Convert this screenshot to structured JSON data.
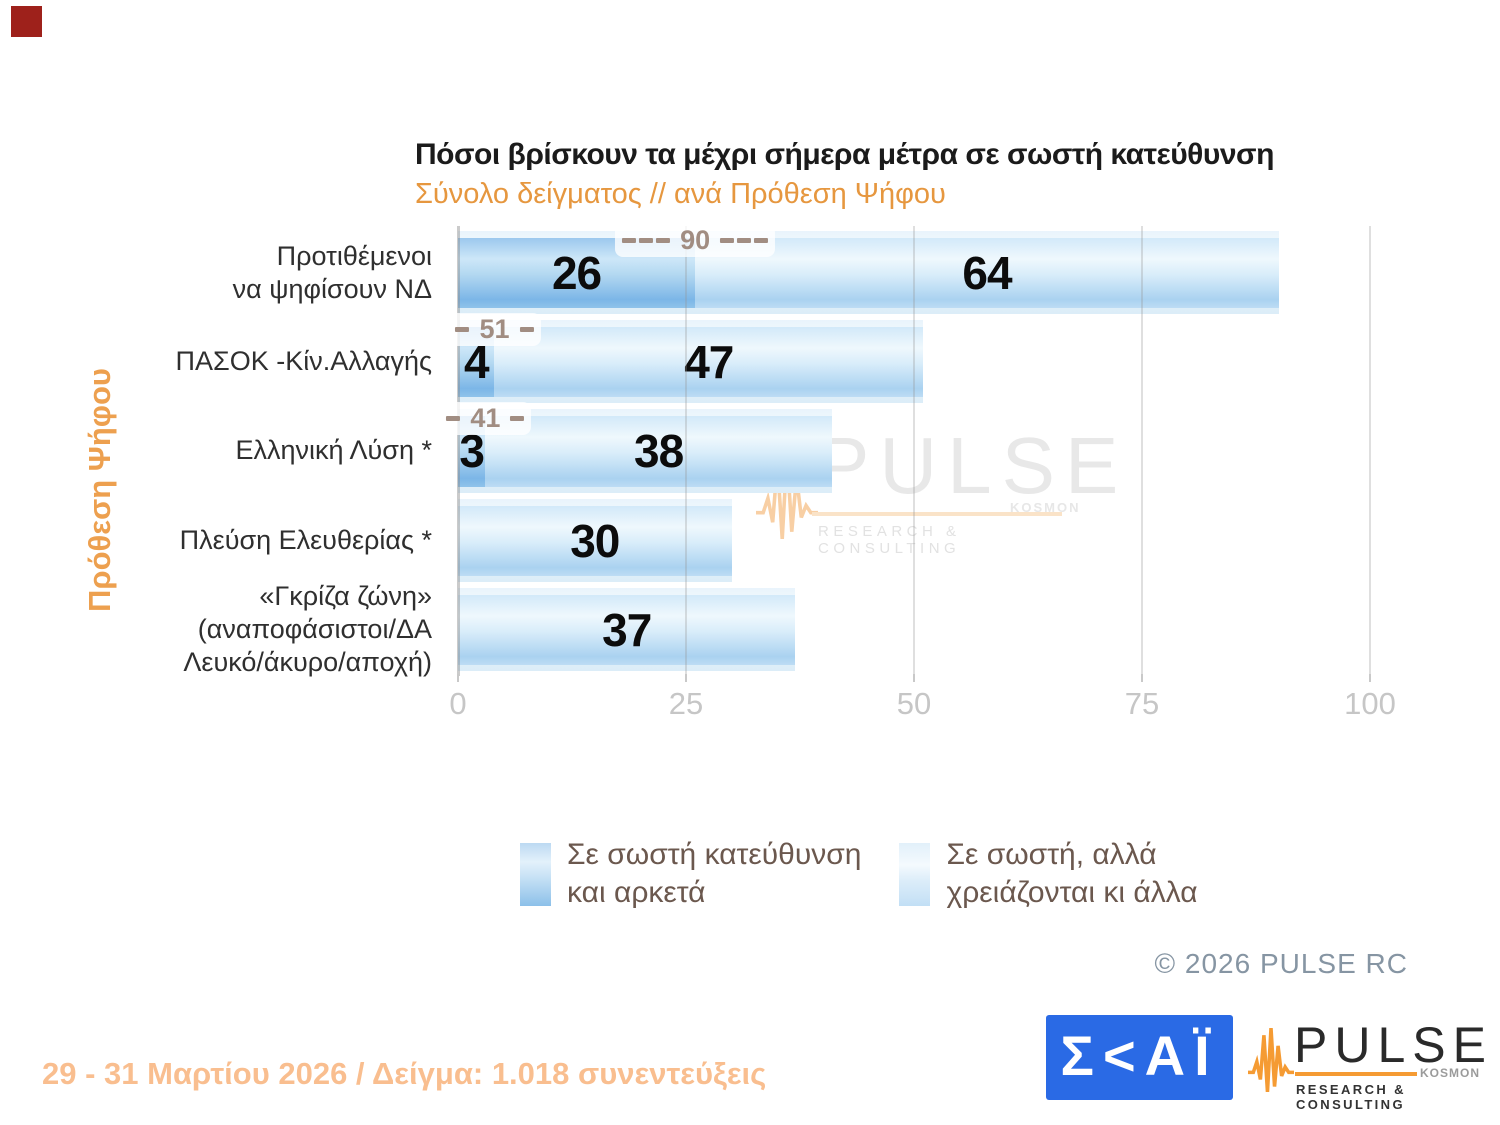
{
  "chart_data": {
    "type": "bar",
    "orientation": "horizontal",
    "stacked": true,
    "title": "Πόσοι βρίσκουν τα μέχρι σήμερα μέτρα σε σωστή κατεύθυνση",
    "subtitle": "Σύνολο δείγματος // ανά Πρόθεση  Ψήφου",
    "ylabel": "Πρόθεση  Ψήφου",
    "xlim": [
      0,
      100
    ],
    "x_ticks": [
      0,
      25,
      50,
      75,
      100
    ],
    "grid": "vertical",
    "legend_position": "bottom",
    "categories": [
      "Προτιθέμενοι να ψηφίσουν ΝΔ",
      "ΠΑΣΟΚ -Κίν.Αλλαγής",
      "Ελληνική Λύση *",
      "Πλεύση Ελευθερίας *",
      "«Γκρίζα ζώνη» (αναποφάσιστοι/ΔΑ Λευκό/άκυρο/αποχή)"
    ],
    "category_lines": [
      [
        "Προτιθέμενοι",
        "να ψηφίσουν ΝΔ"
      ],
      [
        "ΠΑΣΟΚ -Κίν.Αλλαγής"
      ],
      [
        "Ελληνική Λύση *"
      ],
      [
        "Πλεύση Ελευθερίας *"
      ],
      [
        "«Γκρίζα ζώνη»",
        "(αναποφάσιστοι/ΔΑ",
        "Λευκό/άκυρο/αποχή)"
      ]
    ],
    "series": [
      {
        "name": "Σε σωστή κατεύθυνση και αρκετά",
        "values": [
          26,
          4,
          3,
          null,
          null
        ]
      },
      {
        "name": "Σε σωστή, αλλά χρειάζονται κι άλλα",
        "values": [
          64,
          47,
          38,
          30,
          37
        ]
      }
    ],
    "total_annotations": [
      {
        "category_index": 0,
        "total": 90,
        "side_dashes": 3
      },
      {
        "category_index": 1,
        "total": 51,
        "side_dashes": 1
      },
      {
        "category_index": 2,
        "total": 41,
        "side_dashes": 1
      }
    ]
  },
  "legend": {
    "items": [
      {
        "swatch": "dark-blue-gradient",
        "lines": [
          "Σε σωστή κατεύθυνση",
          "και αρκετά"
        ]
      },
      {
        "swatch": "light-blue-gradient",
        "lines": [
          "Σε σωστή, αλλά",
          "χρειάζονται κι άλλα"
        ]
      }
    ]
  },
  "watermark": {
    "icon": "pulse-waveform-icon",
    "brand": "PULSE",
    "kosmon": "KOSMON",
    "sub": "RESEARCH & CONSULTING"
  },
  "footer": {
    "copyright": "©  2026  PULSE RC",
    "skai_text": "Σ<ΑΪ",
    "pulse": {
      "brand": "PULSE",
      "kosmon": "KOSMON",
      "sub": "RESEARCH & CONSULTING"
    },
    "fieldwork": "29 - 31  Μαρτίου 2026  /  Δείγμα:  1.018 συνεντεύξεις"
  },
  "colors": {
    "bar_dark": "#7cb6e7",
    "bar_light": "#aad2f0",
    "bar_pale_total": "#e6f2fb",
    "accent_orange": "#E6973F",
    "annotation_taupe": "#a18d82",
    "legend_text": "#6B584E",
    "copyright_gray": "#8695A3",
    "skai_blue": "#2A6AE5",
    "pulse_orange": "#F59B33",
    "fieldwork_peach": "#F9BE8F",
    "corner_marker_red": "#9e211b"
  }
}
